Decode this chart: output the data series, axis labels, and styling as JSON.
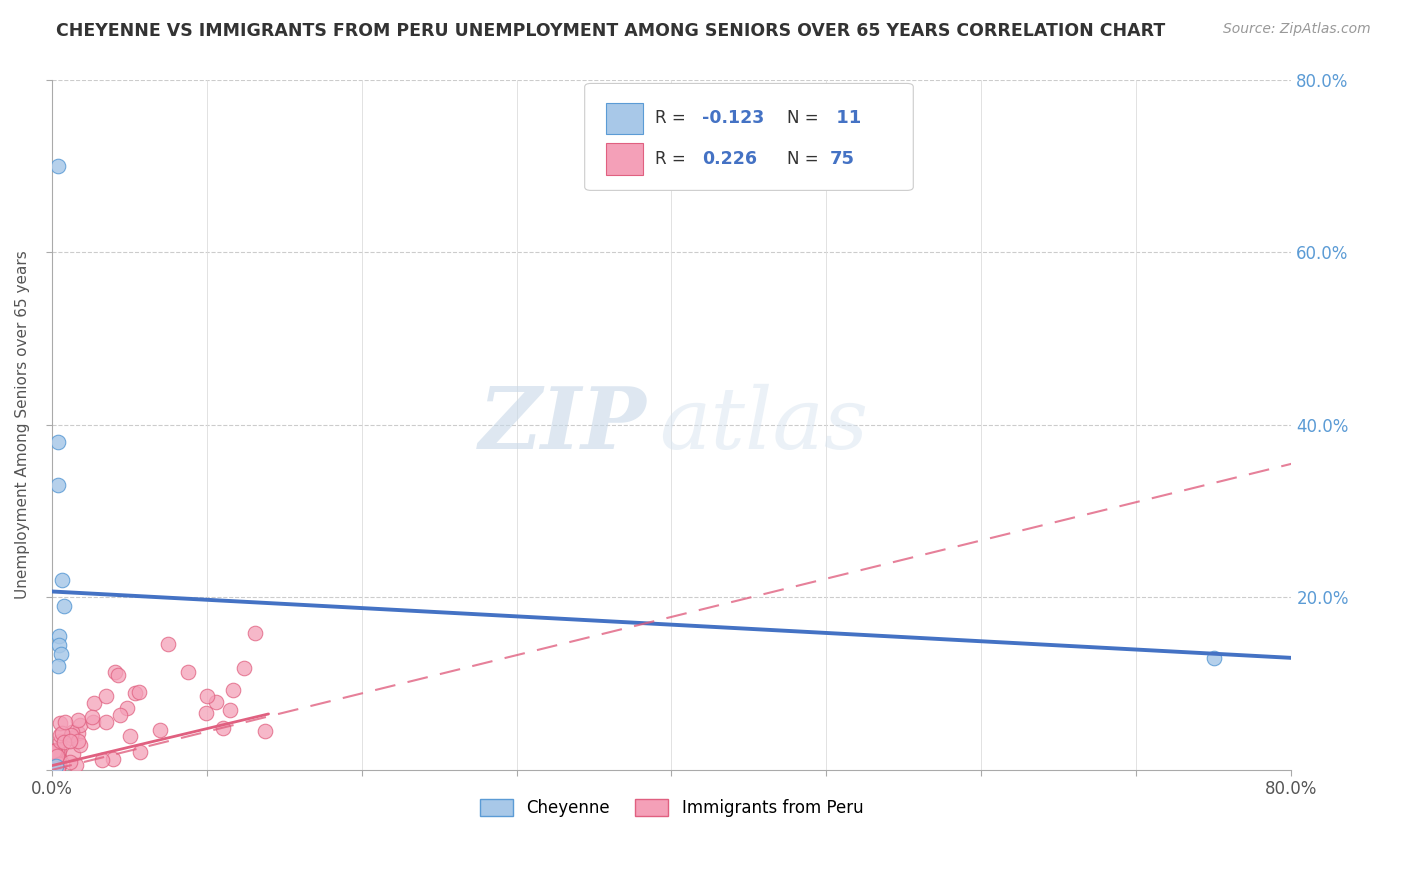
{
  "title": "CHEYENNE VS IMMIGRANTS FROM PERU UNEMPLOYMENT AMONG SENIORS OVER 65 YEARS CORRELATION CHART",
  "source": "Source: ZipAtlas.com",
  "ylabel": "Unemployment Among Seniors over 65 years",
  "xlim": [
    0.0,
    0.8
  ],
  "ylim": [
    0.0,
    0.8
  ],
  "watermark_zip": "ZIP",
  "watermark_atlas": "atlas",
  "cheyenne_color": "#A8C8E8",
  "cheyenne_edge_color": "#5B9BD5",
  "peru_color": "#F4A0B8",
  "peru_edge_color": "#E06080",
  "cheyenne_line_color": "#4472C4",
  "peru_line_color": "#E06080",
  "background_color": "#FFFFFF",
  "right_tick_color": "#5B9BD5",
  "cheyenne_x": [
    0.004,
    0.004,
    0.004,
    0.007,
    0.008,
    0.005,
    0.005,
    0.006,
    0.004,
    0.75,
    0.003
  ],
  "cheyenne_y": [
    0.7,
    0.38,
    0.33,
    0.22,
    0.19,
    0.155,
    0.145,
    0.135,
    0.12,
    0.13,
    0.005
  ],
  "cheyenne_trend_x": [
    0.0,
    0.8
  ],
  "cheyenne_trend_y": [
    0.207,
    0.13
  ],
  "peru_trend_x": [
    0.0,
    0.8
  ],
  "peru_trend_y": [
    0.0,
    0.355
  ]
}
